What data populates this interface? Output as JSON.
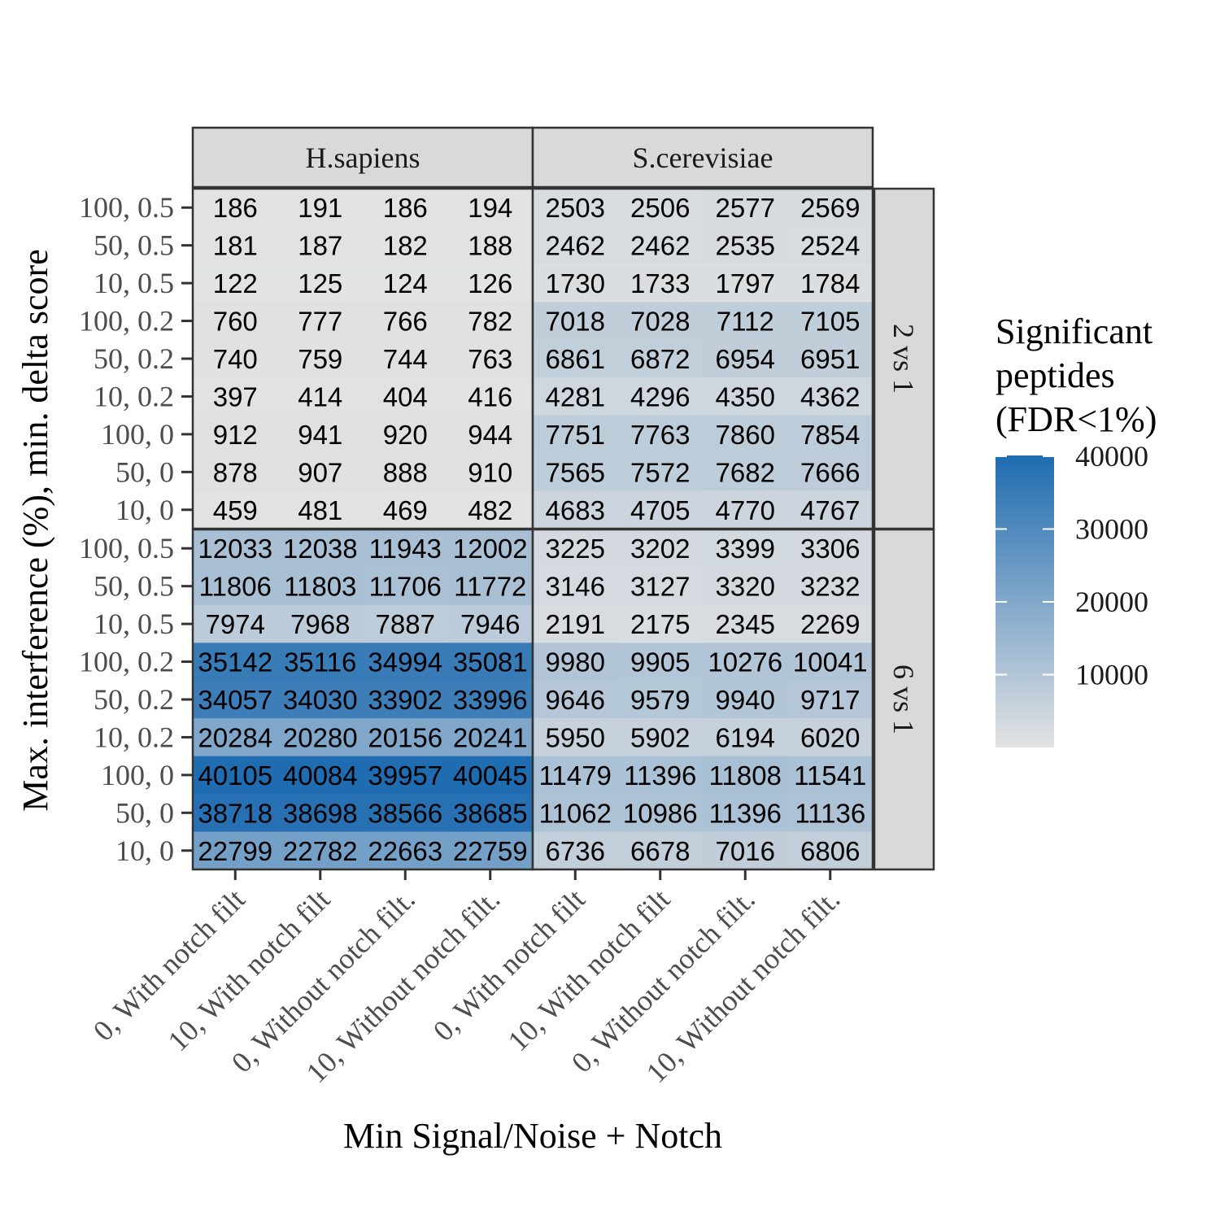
{
  "chart_data": {
    "type": "heatmap",
    "xlabel": "Min Signal/Noise + Notch",
    "ylabel": "Max. interference (%), min. delta score",
    "x_categories": [
      "0, With notch filt",
      "10, With notch filt",
      "0, Without notch filt.",
      "10, Without notch filt."
    ],
    "y_categories": [
      "100, 0.5",
      "50, 0.5",
      "10, 0.5",
      "100, 0.2",
      "50, 0.2",
      "10, 0.2",
      "100, 0",
      "50, 0",
      "10, 0"
    ],
    "column_facets": [
      "H.sapiens",
      "S.cerevisiae"
    ],
    "row_facets": [
      "2 vs 1",
      "6 vs 1"
    ],
    "legend": {
      "title": [
        "Significant",
        "peptides",
        "(FDR<1%)"
      ],
      "ticks": [
        10000,
        20000,
        30000,
        40000
      ],
      "labels": [
        "10000",
        "20000",
        "30000",
        "40000"
      ],
      "range": [
        0,
        40105
      ],
      "low_color": "#e3e3e3",
      "high_color": "#1f6cb1",
      "placement": "right"
    },
    "values": {
      "2 vs 1": {
        "H.sapiens": [
          [
            186,
            191,
            186,
            194
          ],
          [
            181,
            187,
            182,
            188
          ],
          [
            122,
            125,
            124,
            126
          ],
          [
            760,
            777,
            766,
            782
          ],
          [
            740,
            759,
            744,
            763
          ],
          [
            397,
            414,
            404,
            416
          ],
          [
            912,
            941,
            920,
            944
          ],
          [
            878,
            907,
            888,
            910
          ],
          [
            459,
            481,
            469,
            482
          ]
        ],
        "S.cerevisiae": [
          [
            2503,
            2506,
            2577,
            2569
          ],
          [
            2462,
            2462,
            2535,
            2524
          ],
          [
            1730,
            1733,
            1797,
            1784
          ],
          [
            7018,
            7028,
            7112,
            7105
          ],
          [
            6861,
            6872,
            6954,
            6951
          ],
          [
            4281,
            4296,
            4350,
            4362
          ],
          [
            7751,
            7763,
            7860,
            7854
          ],
          [
            7565,
            7572,
            7682,
            7666
          ],
          [
            4683,
            4705,
            4770,
            4767
          ]
        ]
      },
      "6 vs 1": {
        "H.sapiens": [
          [
            12033,
            12038,
            11943,
            12002
          ],
          [
            11806,
            11803,
            11706,
            11772
          ],
          [
            7974,
            7968,
            7887,
            7946
          ],
          [
            35142,
            35116,
            34994,
            35081
          ],
          [
            34057,
            34030,
            33902,
            33996
          ],
          [
            20284,
            20280,
            20156,
            20241
          ],
          [
            40105,
            40084,
            39957,
            40045
          ],
          [
            38718,
            38698,
            38566,
            38685
          ],
          [
            22799,
            22782,
            22663,
            22759
          ]
        ],
        "S.cerevisiae": [
          [
            3225,
            3202,
            3399,
            3306
          ],
          [
            3146,
            3127,
            3320,
            3232
          ],
          [
            2191,
            2175,
            2345,
            2269
          ],
          [
            9980,
            9905,
            10276,
            10041
          ],
          [
            9646,
            9579,
            9940,
            9717
          ],
          [
            5950,
            5902,
            6194,
            6020
          ],
          [
            11479,
            11396,
            11808,
            11541
          ],
          [
            11062,
            10986,
            11396,
            11136
          ],
          [
            6736,
            6678,
            7016,
            6806
          ]
        ]
      }
    }
  }
}
